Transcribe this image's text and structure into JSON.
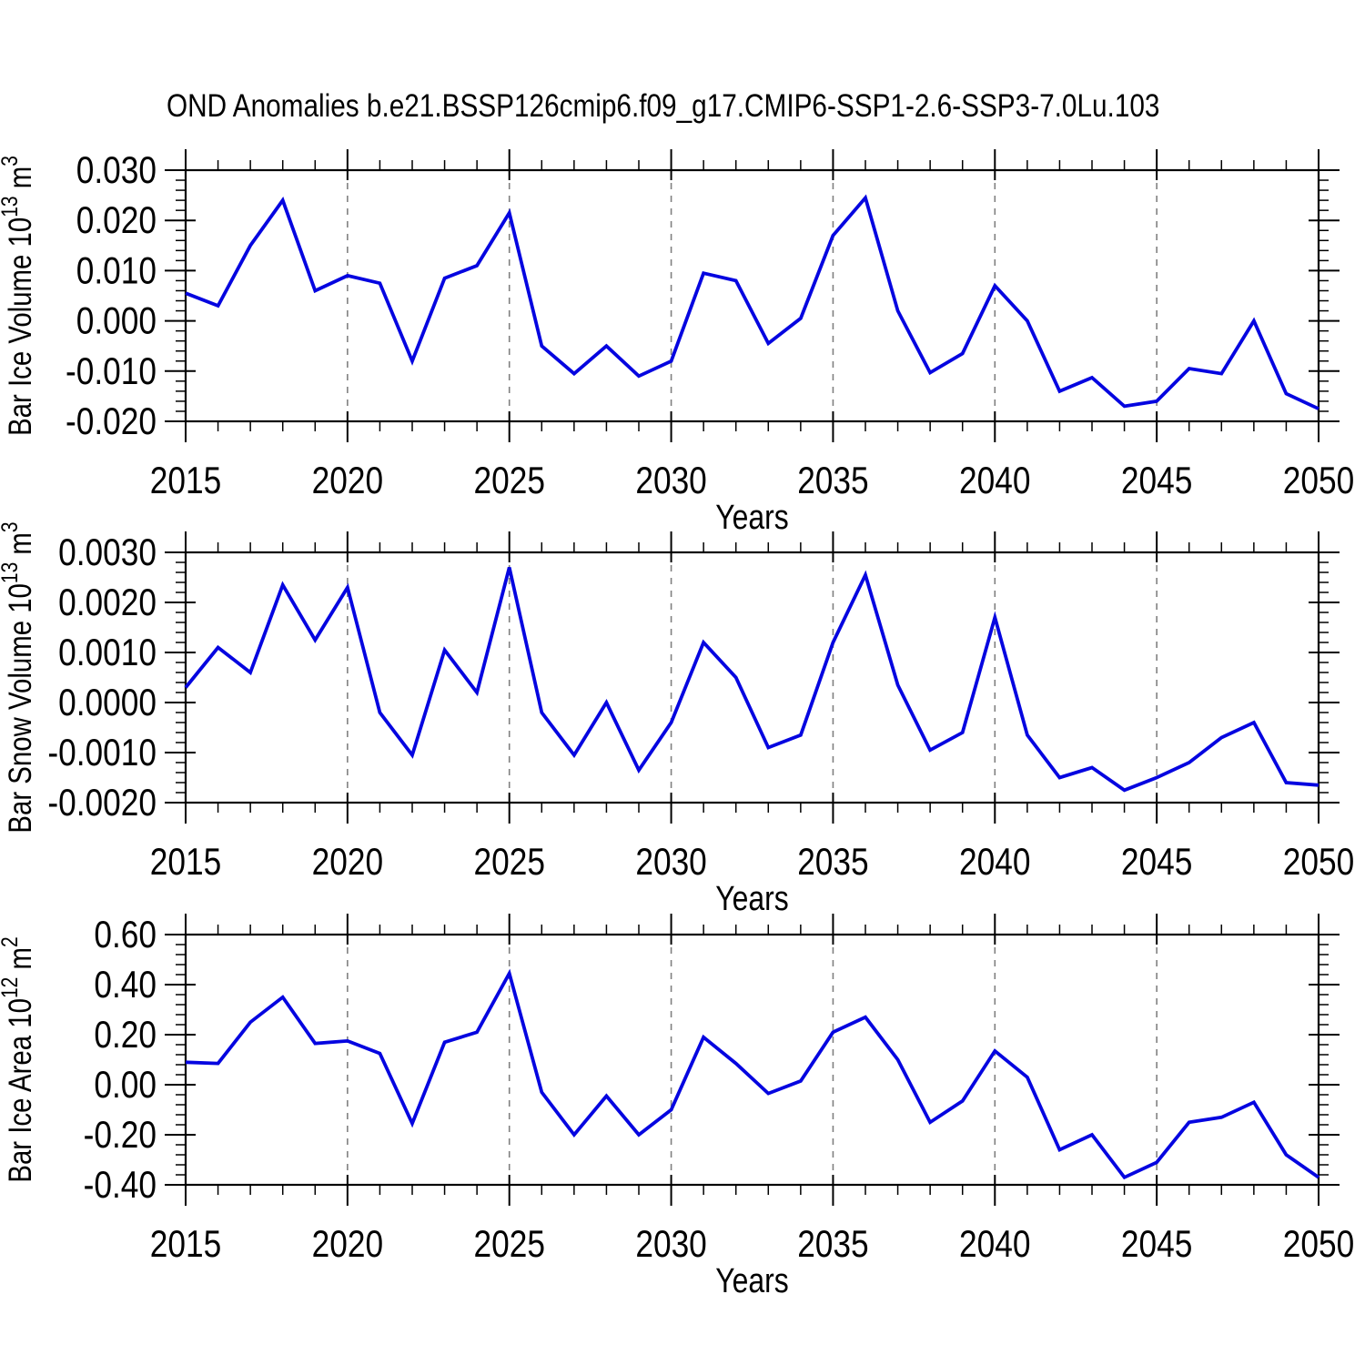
{
  "title": "OND Anomalies b.e21.BSSP126cmip6.f09_g17.CMIP6-SSP1-2.6-SSP3-7.0Lu.103",
  "colors": {
    "line": "#0505e0",
    "frame": "#000000",
    "grid": "#808080",
    "text": "#000000",
    "background": "#ffffff"
  },
  "x_axis": {
    "label": "Years",
    "start": 2015,
    "end": 2050,
    "major_tick_step": 5,
    "minor_tick_step": 1,
    "tick_labels": [
      "2015",
      "2020",
      "2025",
      "2030",
      "2035",
      "2040",
      "2045",
      "2050"
    ],
    "gridline_years": [
      2020,
      2025,
      2030,
      2035,
      2040,
      2045
    ],
    "years": [
      2015,
      2016,
      2017,
      2018,
      2019,
      2020,
      2021,
      2022,
      2023,
      2024,
      2025,
      2026,
      2027,
      2028,
      2029,
      2030,
      2031,
      2032,
      2033,
      2034,
      2035,
      2036,
      2037,
      2038,
      2039,
      2040,
      2041,
      2042,
      2043,
      2044,
      2045,
      2046,
      2047,
      2048,
      2049,
      2050
    ]
  },
  "chart_data": [
    {
      "type": "line",
      "name": "bar-ice-volume",
      "ylabel": "Bar Ice Volume 10¹³ m³",
      "ylabel_parts": [
        {
          "t": "Bar Ice Volume 10"
        },
        {
          "t": "13",
          "sup": true
        },
        {
          "t": " m"
        },
        {
          "t": "3",
          "sup": true
        }
      ],
      "xlabel": "Years",
      "x_range": [
        2015,
        2050
      ],
      "ylim": [
        -0.02,
        0.03
      ],
      "ytick_major_step": 0.01,
      "ytick_minor_step": 0.002,
      "ytick_labels": [
        "0.030",
        "0.020",
        "0.010",
        "0.000",
        "-0.010",
        "-0.020"
      ],
      "grid": "vertical-dashed",
      "values": [
        0.0055,
        0.003,
        0.015,
        0.024,
        0.006,
        0.009,
        0.0075,
        -0.008,
        0.0085,
        0.011,
        0.0215,
        -0.005,
        -0.0105,
        -0.005,
        -0.011,
        -0.008,
        0.0095,
        0.008,
        -0.0045,
        0.0005,
        0.017,
        0.0245,
        0.002,
        -0.0103,
        -0.0065,
        0.007,
        0.0,
        -0.014,
        -0.0113,
        -0.017,
        -0.016,
        -0.0095,
        -0.0105,
        0.0,
        -0.0145,
        -0.0175
      ]
    },
    {
      "type": "line",
      "name": "bar-snow-volume",
      "ylabel": "Bar Snow Volume 10¹³ m³",
      "ylabel_parts": [
        {
          "t": "Bar Snow Volume 10"
        },
        {
          "t": "13",
          "sup": true
        },
        {
          "t": " m"
        },
        {
          "t": "3",
          "sup": true
        }
      ],
      "xlabel": "Years",
      "x_range": [
        2015,
        2050
      ],
      "ylim": [
        -0.002,
        0.003
      ],
      "ytick_major_step": 0.001,
      "ytick_minor_step": 0.0002,
      "ytick_labels": [
        "0.0030",
        "0.0020",
        "0.0010",
        "0.0000",
        "-0.0010",
        "-0.0020"
      ],
      "grid": "vertical-dashed",
      "values": [
        0.0003,
        0.0011,
        0.0006,
        0.00235,
        0.00125,
        0.0023,
        -0.0002,
        -0.00105,
        0.00105,
        0.0002,
        0.0027,
        -0.0002,
        -0.00105,
        0.0,
        -0.00135,
        -0.0004,
        0.0012,
        0.0005,
        -0.0009,
        -0.00065,
        0.0012,
        0.00255,
        0.00035,
        -0.00095,
        -0.0006,
        0.0017,
        -0.00065,
        -0.0015,
        -0.0013,
        -0.00175,
        -0.0015,
        -0.0012,
        -0.0007,
        -0.0004,
        -0.0016,
        -0.00165
      ]
    },
    {
      "type": "line",
      "name": "bar-ice-area",
      "ylabel": "Bar Ice Area 10¹² m²",
      "ylabel_parts": [
        {
          "t": "Bar Ice Area 10"
        },
        {
          "t": "12",
          "sup": true
        },
        {
          "t": " m"
        },
        {
          "t": "2",
          "sup": true
        }
      ],
      "xlabel": "Years",
      "x_range": [
        2015,
        2050
      ],
      "ylim": [
        -0.4,
        0.6
      ],
      "ytick_major_step": 0.2,
      "ytick_minor_step": 0.04,
      "ytick_labels": [
        "0.60",
        "0.40",
        "0.20",
        "0.00",
        "-0.20",
        "-0.40"
      ],
      "grid": "vertical-dashed",
      "values": [
        0.09,
        0.085,
        0.25,
        0.35,
        0.165,
        0.175,
        0.125,
        -0.155,
        0.17,
        0.21,
        0.445,
        -0.03,
        -0.2,
        -0.045,
        -0.2,
        -0.1,
        0.19,
        0.085,
        -0.035,
        0.015,
        0.21,
        0.27,
        0.1,
        -0.15,
        -0.065,
        0.135,
        0.03,
        -0.26,
        -0.2,
        -0.37,
        -0.31,
        -0.15,
        -0.13,
        -0.07,
        -0.28,
        -0.37
      ]
    }
  ]
}
